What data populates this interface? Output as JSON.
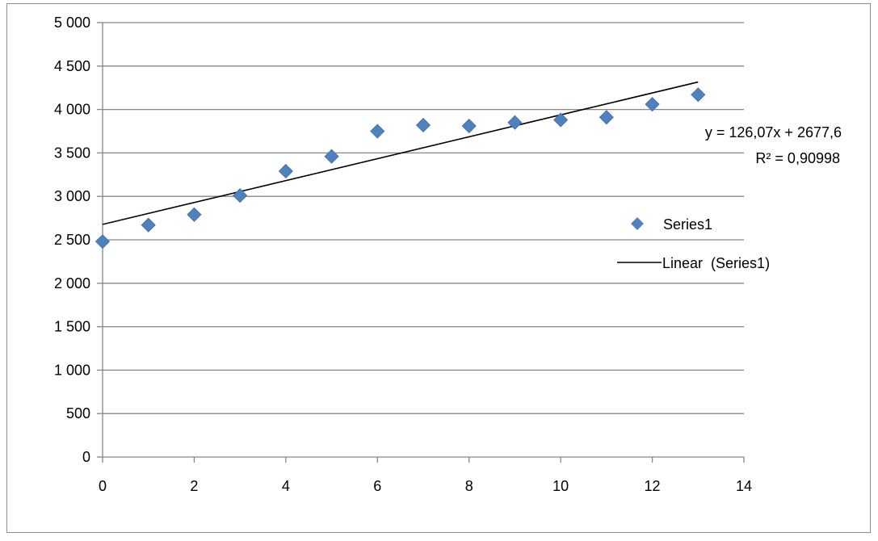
{
  "chart_data": {
    "type": "scatter",
    "title": "",
    "xlabel": "",
    "ylabel": "",
    "xlim": [
      0,
      14
    ],
    "ylim": [
      0,
      5000
    ],
    "x_ticks": [
      0,
      2,
      4,
      6,
      8,
      10,
      12,
      14
    ],
    "y_ticks": [
      0,
      500,
      1000,
      1500,
      2000,
      2500,
      3000,
      3500,
      4000,
      4500,
      5000
    ],
    "x_tick_labels": [
      "0",
      "2",
      "4",
      "6",
      "8",
      "10",
      "12",
      "14"
    ],
    "y_tick_labels": [
      "0",
      "500",
      "1 000",
      "1 500",
      "2 000",
      "2 500",
      "3 000",
      "3 500",
      "4 000",
      "4 500",
      "5 000"
    ],
    "grid": {
      "horizontal": true,
      "vertical": false
    },
    "legend_position": "right",
    "series": [
      {
        "name": "Series1",
        "marker": "diamond",
        "color": "#4f81bd",
        "x": [
          0,
          1,
          2,
          3,
          4,
          5,
          6,
          7,
          8,
          9,
          10,
          11,
          12,
          13
        ],
        "y": [
          2480,
          2670,
          2790,
          3010,
          3290,
          3460,
          3750,
          3820,
          3810,
          3850,
          3880,
          3910,
          4060,
          4170
        ]
      }
    ],
    "trendline": {
      "name": "Linear  (Series1)",
      "type": "linear",
      "slope": 126.07,
      "intercept": 2677.6,
      "x_range": [
        0,
        13
      ],
      "color": "#000000",
      "equation_label": "y = 126,07x + 2677,6",
      "r2_label": "R² = 0,90998"
    },
    "legend": [
      {
        "label": "Series1",
        "symbol": "diamond",
        "color": "#4f81bd"
      },
      {
        "label": "Linear  (Series1)",
        "symbol": "line",
        "color": "#000000"
      }
    ],
    "colors": {
      "gridline": "#868686",
      "axis": "#868686",
      "marker": "#4f81bd"
    }
  }
}
